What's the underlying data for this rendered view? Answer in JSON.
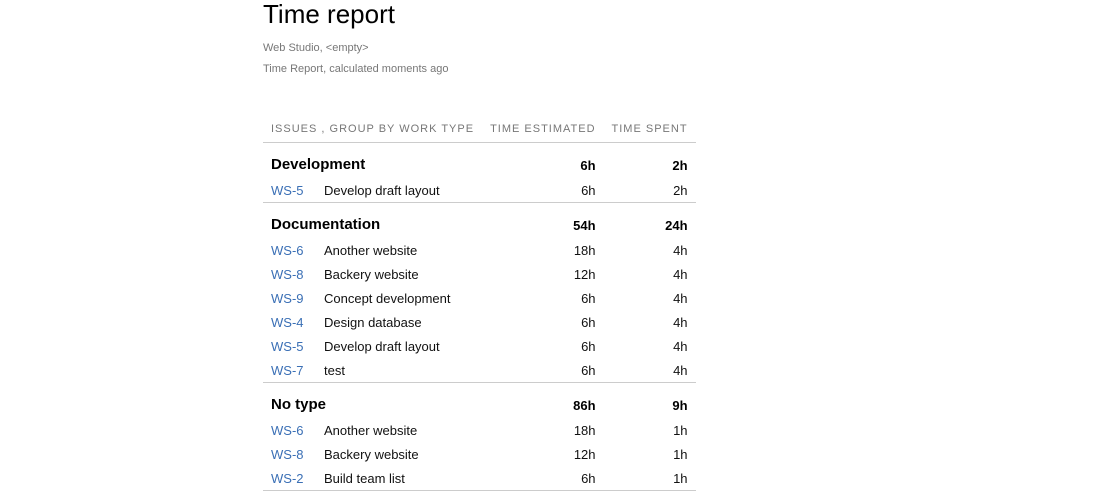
{
  "header": {
    "title": "Time report",
    "project_line": "Web Studio, <empty>",
    "calc_line": "Time Report, calculated moments ago"
  },
  "columns": {
    "issues": "ISSUES , GROUP BY WORK TYPE",
    "estimated": "TIME ESTIMATED",
    "spent": "TIME SPENT"
  },
  "groups": [
    {
      "name": "Development",
      "estimated": "6h",
      "spent": "2h",
      "issues": [
        {
          "key": "WS-5",
          "summary": "Develop draft layout",
          "estimated": "6h",
          "spent": "2h"
        }
      ]
    },
    {
      "name": "Documentation",
      "estimated": "54h",
      "spent": "24h",
      "issues": [
        {
          "key": "WS-6",
          "summary": "Another website",
          "estimated": "18h",
          "spent": "4h"
        },
        {
          "key": "WS-8",
          "summary": "Backery website",
          "estimated": "12h",
          "spent": "4h"
        },
        {
          "key": "WS-9",
          "summary": "Concept development",
          "estimated": "6h",
          "spent": "4h"
        },
        {
          "key": "WS-4",
          "summary": "Design database",
          "estimated": "6h",
          "spent": "4h"
        },
        {
          "key": "WS-5",
          "summary": "Develop draft layout",
          "estimated": "6h",
          "spent": "4h"
        },
        {
          "key": "WS-7",
          "summary": "test",
          "estimated": "6h",
          "spent": "4h"
        }
      ]
    },
    {
      "name": "No type",
      "estimated": "86h",
      "spent": "9h",
      "issues": [
        {
          "key": "WS-6",
          "summary": "Another website",
          "estimated": "18h",
          "spent": "1h"
        },
        {
          "key": "WS-8",
          "summary": "Backery website",
          "estimated": "12h",
          "spent": "1h"
        },
        {
          "key": "WS-2",
          "summary": "Build team list",
          "estimated": "6h",
          "spent": "1h"
        }
      ]
    }
  ]
}
